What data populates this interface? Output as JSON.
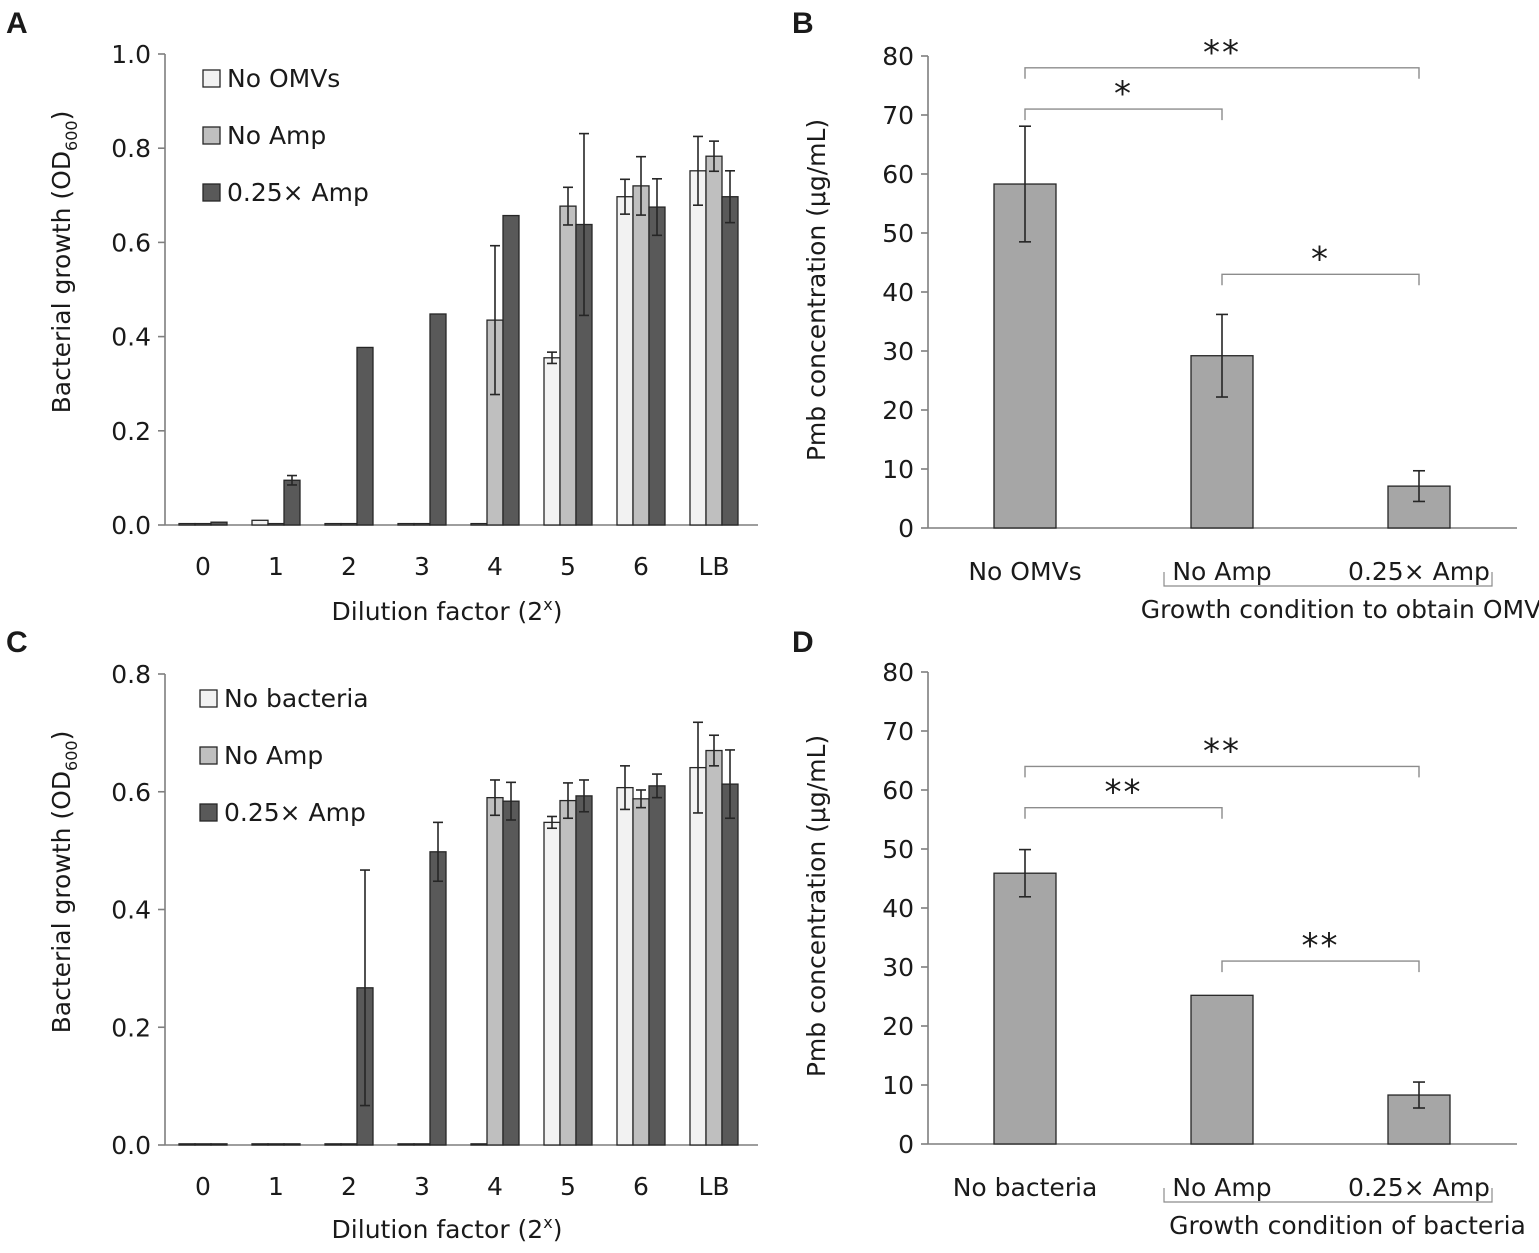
{
  "figure": {
    "panels": [
      {
        "letter": "A",
        "chart_index": 0
      },
      {
        "letter": "B",
        "chart_index": 1
      },
      {
        "letter": "C",
        "chart_index": 2
      },
      {
        "letter": "D",
        "chart_index": 3
      }
    ]
  },
  "colors": {
    "no_treatment_fill": "#f2f2f2",
    "no_amp_fill": "#bfbfbf",
    "amp_fill": "#595959",
    "single_bar_fill": "#a6a6a6",
    "bar_stroke": "#262626",
    "axis": "#7f7f7f",
    "bracket": "#8c8c8c",
    "text": "#1a1a1a"
  },
  "chart_data": [
    {
      "panel": "A",
      "type": "bar",
      "categories": [
        "0",
        "1",
        "2",
        "3",
        "4",
        "5",
        "6",
        "LB"
      ],
      "xlabel": "Dilution factor (2",
      "xlabel_sup": "x",
      "xlabel_end": ")",
      "ylabel": "Bacterial growth (OD",
      "ylabel_sub": "600",
      "ylabel_end": ")",
      "ylim": [
        0,
        1.0
      ],
      "yticks": [
        "0.0",
        "0.2",
        "0.4",
        "0.6",
        "0.8",
        "1.0"
      ],
      "legend_position": "top-left",
      "series": [
        {
          "name": "No OMVs",
          "color_key": "no_treatment_fill",
          "values": [
            0.003,
            0.01,
            0.003,
            0.003,
            0.003,
            0.355,
            0.697,
            0.752
          ],
          "errors": [
            0.0,
            0.0,
            0.0,
            0.0,
            0.0,
            0.012,
            0.037,
            0.073
          ]
        },
        {
          "name": "No Amp",
          "color_key": "no_amp_fill",
          "values": [
            0.003,
            0.003,
            0.003,
            0.003,
            0.435,
            0.677,
            0.72,
            0.783
          ],
          "errors": [
            0.0,
            0.0,
            0.0,
            0.0,
            0.158,
            0.04,
            0.062,
            0.032
          ]
        },
        {
          "name": "0.25× Amp",
          "color_key": "amp_fill",
          "values": [
            0.006,
            0.095,
            0.377,
            0.448,
            0.657,
            0.638,
            0.675,
            0.697
          ],
          "errors": [
            0.0,
            0.01,
            0.0,
            0.0,
            0.0,
            0.193,
            0.06,
            0.055
          ]
        }
      ]
    },
    {
      "panel": "B",
      "type": "bar",
      "categories": [
        "No OMVs",
        "No Amp",
        "0.25× Amp"
      ],
      "group_label": "Growth condition to obtain OMVs",
      "ylabel": "Pmb concentration (μg/mL)",
      "ylim": [
        0,
        80
      ],
      "yticks": [
        "0",
        "10",
        "20",
        "30",
        "40",
        "50",
        "60",
        "70",
        "80"
      ],
      "values": [
        58.3,
        29.2,
        7.1
      ],
      "errors": [
        9.8,
        7.0,
        2.6
      ],
      "significance": [
        {
          "from": 0,
          "to": 2,
          "label": "**",
          "y": 78
        },
        {
          "from": 0,
          "to": 1,
          "label": "*",
          "y": 71
        },
        {
          "from": 1,
          "to": 2,
          "label": "*",
          "y": 43
        }
      ]
    },
    {
      "panel": "C",
      "type": "bar",
      "categories": [
        "0",
        "1",
        "2",
        "3",
        "4",
        "5",
        "6",
        "LB"
      ],
      "xlabel": "Dilution factor (2",
      "xlabel_sup": "x",
      "xlabel_end": ")",
      "ylabel": "Bacterial growth (OD",
      "ylabel_sub": "600",
      "ylabel_end": ")",
      "ylim": [
        0,
        0.8
      ],
      "yticks": [
        "0.0",
        "0.2",
        "0.4",
        "0.6",
        "0.8"
      ],
      "legend_position": "top-left",
      "series": [
        {
          "name": "No bacteria",
          "color_key": "no_treatment_fill",
          "values": [
            0.002,
            0.002,
            0.002,
            0.002,
            0.002,
            0.548,
            0.607,
            0.641
          ],
          "errors": [
            0.0,
            0.0,
            0.0,
            0.0,
            0.0,
            0.01,
            0.037,
            0.077
          ]
        },
        {
          "name": "No Amp",
          "color_key": "no_amp_fill",
          "values": [
            0.002,
            0.002,
            0.002,
            0.002,
            0.59,
            0.585,
            0.588,
            0.67
          ],
          "errors": [
            0.0,
            0.0,
            0.0,
            0.0,
            0.03,
            0.03,
            0.015,
            0.026
          ]
        },
        {
          "name": "0.25× Amp",
          "color_key": "amp_fill",
          "values": [
            0.002,
            0.002,
            0.267,
            0.498,
            0.584,
            0.593,
            0.61,
            0.613
          ],
          "errors": [
            0.0,
            0.0,
            0.2,
            0.05,
            0.032,
            0.027,
            0.02,
            0.058
          ]
        }
      ]
    },
    {
      "panel": "D",
      "type": "bar",
      "categories": [
        "No bacteria",
        "No Amp",
        "0.25× Amp"
      ],
      "group_label": "Growth condition of bacteria",
      "ylabel": "Pmb concentration (μg/mL)",
      "ylim": [
        0,
        80
      ],
      "yticks": [
        "0",
        "10",
        "20",
        "30",
        "40",
        "50",
        "60",
        "70",
        "80"
      ],
      "values": [
        45.9,
        25.2,
        8.3
      ],
      "errors": [
        4.0,
        0.0,
        2.2
      ],
      "significance": [
        {
          "from": 0,
          "to": 2,
          "label": "**",
          "y": 64
        },
        {
          "from": 0,
          "to": 1,
          "label": "**",
          "y": 57
        },
        {
          "from": 1,
          "to": 2,
          "label": "**",
          "y": 31
        }
      ]
    }
  ]
}
